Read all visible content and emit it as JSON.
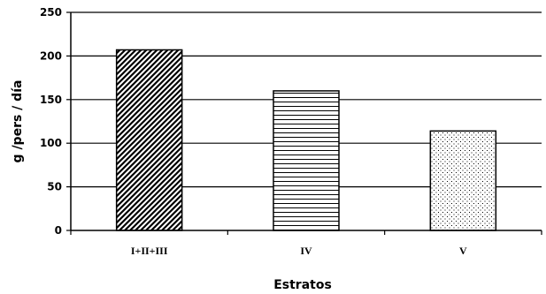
{
  "chart_data": {
    "type": "bar",
    "title": "",
    "xlabel": "Estratos",
    "ylabel": "g /pers / día",
    "categories": [
      "I+II+III",
      "IV",
      "V"
    ],
    "values": [
      207,
      160,
      114
    ],
    "patterns": [
      "diagonal-hatch",
      "horizontal-lines",
      "dots"
    ],
    "ylim": [
      0,
      250
    ],
    "yticks": [
      "0",
      "50",
      "100",
      "150",
      "200",
      "250"
    ],
    "grid": true
  }
}
